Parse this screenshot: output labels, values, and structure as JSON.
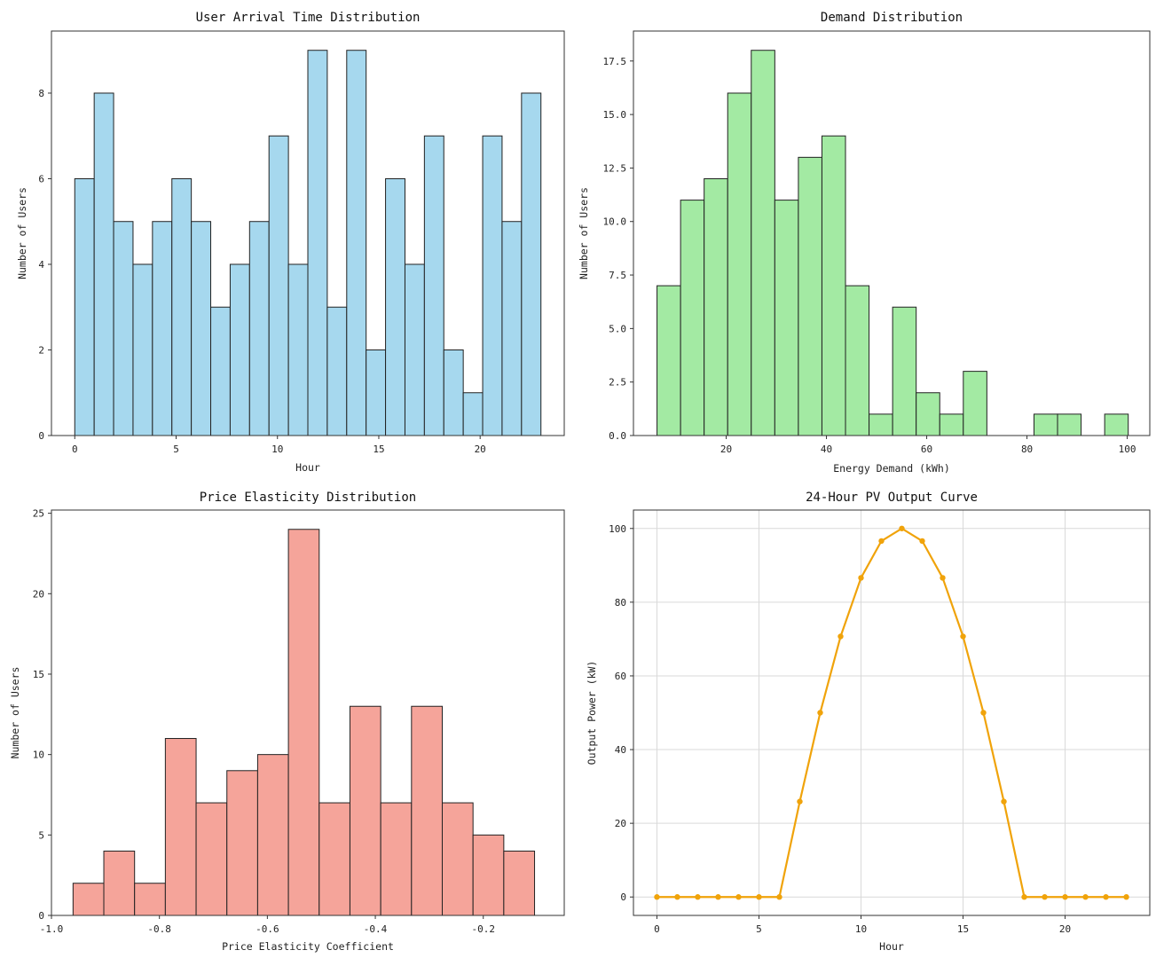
{
  "figure_title": "",
  "chart_data": [
    {
      "id": "arrival",
      "type": "bar",
      "title": "User Arrival Time Distribution",
      "xlabel": "Hour",
      "ylabel": "Number of Users",
      "color": "#a6d8ee",
      "edge_color": "#222222",
      "xlim": [
        -1.15,
        24.15
      ],
      "ylim": [
        0,
        9.45
      ],
      "xticks": [
        0,
        5,
        10,
        15,
        20
      ],
      "yticks": [
        0,
        2,
        4,
        6,
        8
      ],
      "grid": false,
      "bins": [
        {
          "x0": 0.0,
          "x1": 0.958,
          "value": 6
        },
        {
          "x0": 0.958,
          "x1": 1.917,
          "value": 8
        },
        {
          "x0": 1.917,
          "x1": 2.875,
          "value": 5
        },
        {
          "x0": 2.875,
          "x1": 3.833,
          "value": 4
        },
        {
          "x0": 3.833,
          "x1": 4.792,
          "value": 5
        },
        {
          "x0": 4.792,
          "x1": 5.75,
          "value": 6
        },
        {
          "x0": 5.75,
          "x1": 6.708,
          "value": 5
        },
        {
          "x0": 6.708,
          "x1": 7.667,
          "value": 3
        },
        {
          "x0": 7.667,
          "x1": 8.625,
          "value": 4
        },
        {
          "x0": 8.625,
          "x1": 9.583,
          "value": 5
        },
        {
          "x0": 9.583,
          "x1": 10.542,
          "value": 7
        },
        {
          "x0": 10.542,
          "x1": 11.5,
          "value": 4
        },
        {
          "x0": 11.5,
          "x1": 12.458,
          "value": 9
        },
        {
          "x0": 12.458,
          "x1": 13.417,
          "value": 3
        },
        {
          "x0": 13.417,
          "x1": 14.375,
          "value": 9
        },
        {
          "x0": 14.375,
          "x1": 15.333,
          "value": 2
        },
        {
          "x0": 15.333,
          "x1": 16.292,
          "value": 6
        },
        {
          "x0": 16.292,
          "x1": 17.25,
          "value": 4
        },
        {
          "x0": 17.25,
          "x1": 18.208,
          "value": 7
        },
        {
          "x0": 18.208,
          "x1": 19.167,
          "value": 2
        },
        {
          "x0": 19.167,
          "x1": 20.125,
          "value": 1
        },
        {
          "x0": 20.125,
          "x1": 21.083,
          "value": 7
        },
        {
          "x0": 21.083,
          "x1": 22.042,
          "value": 5
        },
        {
          "x0": 22.042,
          "x1": 23.0,
          "value": 8
        }
      ]
    },
    {
      "id": "demand",
      "type": "bar",
      "title": "Demand Distribution",
      "xlabel": "Energy Demand (kWh)",
      "ylabel": "Number of Users",
      "color": "#a3eaa3",
      "edge_color": "#222222",
      "xlim": [
        1.5,
        104.5
      ],
      "ylim": [
        0,
        18.9
      ],
      "xticks": [
        20,
        40,
        60,
        80,
        100
      ],
      "ytick_values": [
        0,
        2.5,
        5,
        7.5,
        10,
        12.5,
        15,
        17.5
      ],
      "ytick_labels": [
        "0.0",
        "2.5",
        "5.0",
        "7.5",
        "10.0",
        "12.5",
        "15.0",
        "17.5"
      ],
      "grid": false,
      "bins": [
        {
          "x0": 6.2,
          "x1": 10.9,
          "value": 7
        },
        {
          "x0": 10.9,
          "x1": 15.6,
          "value": 11
        },
        {
          "x0": 15.6,
          "x1": 20.3,
          "value": 12
        },
        {
          "x0": 20.3,
          "x1": 25.0,
          "value": 16
        },
        {
          "x0": 25.0,
          "x1": 29.7,
          "value": 18
        },
        {
          "x0": 29.7,
          "x1": 34.4,
          "value": 11
        },
        {
          "x0": 34.4,
          "x1": 39.1,
          "value": 13
        },
        {
          "x0": 39.1,
          "x1": 43.8,
          "value": 14
        },
        {
          "x0": 43.8,
          "x1": 48.5,
          "value": 7
        },
        {
          "x0": 48.5,
          "x1": 53.2,
          "value": 1
        },
        {
          "x0": 53.2,
          "x1": 57.9,
          "value": 6
        },
        {
          "x0": 57.9,
          "x1": 62.6,
          "value": 2
        },
        {
          "x0": 62.6,
          "x1": 67.3,
          "value": 1
        },
        {
          "x0": 67.3,
          "x1": 72.0,
          "value": 3
        },
        {
          "x0": 72.0,
          "x1": 76.7,
          "value": 0
        },
        {
          "x0": 76.7,
          "x1": 81.4,
          "value": 0
        },
        {
          "x0": 81.4,
          "x1": 86.1,
          "value": 1
        },
        {
          "x0": 86.1,
          "x1": 90.8,
          "value": 1
        },
        {
          "x0": 90.8,
          "x1": 95.5,
          "value": 0
        },
        {
          "x0": 95.5,
          "x1": 100.2,
          "value": 1
        }
      ]
    },
    {
      "id": "elasticity",
      "type": "bar",
      "title": "Price Elasticity Distribution",
      "xlabel": "Price Elasticity Coefficient",
      "ylabel": "Number of Users",
      "color": "#f5a49a",
      "edge_color": "#222222",
      "xlim": [
        -1.0,
        -0.05
      ],
      "ylim": [
        0,
        25.2
      ],
      "xtick_values": [
        -1.0,
        -0.8,
        -0.6,
        -0.4,
        -0.2
      ],
      "xtick_labels": [
        "-1.0",
        "-0.8",
        "-0.6",
        "-0.4",
        "-0.2"
      ],
      "yticks": [
        0,
        5,
        10,
        15,
        20,
        25
      ],
      "grid": false,
      "bins": [
        {
          "x0": -0.96,
          "x1": -0.903,
          "value": 2
        },
        {
          "x0": -0.903,
          "x1": -0.846,
          "value": 4
        },
        {
          "x0": -0.846,
          "x1": -0.789,
          "value": 2
        },
        {
          "x0": -0.789,
          "x1": -0.732,
          "value": 11
        },
        {
          "x0": -0.732,
          "x1": -0.675,
          "value": 7
        },
        {
          "x0": -0.675,
          "x1": -0.618,
          "value": 9
        },
        {
          "x0": -0.618,
          "x1": -0.561,
          "value": 10
        },
        {
          "x0": -0.561,
          "x1": -0.504,
          "value": 24
        },
        {
          "x0": -0.504,
          "x1": -0.447,
          "value": 7
        },
        {
          "x0": -0.447,
          "x1": -0.39,
          "value": 13
        },
        {
          "x0": -0.39,
          "x1": -0.333,
          "value": 7
        },
        {
          "x0": -0.333,
          "x1": -0.276,
          "value": 13
        },
        {
          "x0": -0.276,
          "x1": -0.219,
          "value": 7
        },
        {
          "x0": -0.219,
          "x1": -0.162,
          "value": 5
        },
        {
          "x0": -0.162,
          "x1": -0.105,
          "value": 4
        }
      ]
    },
    {
      "id": "pv",
      "type": "line",
      "title": "24-Hour PV Output Curve",
      "xlabel": "Hour",
      "ylabel": "Output Power (kW)",
      "color": "#f0a30a",
      "xlim": [
        -1.15,
        24.15
      ],
      "ylim": [
        -5,
        105
      ],
      "xticks": [
        0,
        5,
        10,
        15,
        20
      ],
      "yticks": [
        0,
        20,
        40,
        60,
        80,
        100
      ],
      "grid": true,
      "series": [
        {
          "name": "PV Output",
          "x": [
            0,
            1,
            2,
            3,
            4,
            5,
            6,
            7,
            8,
            9,
            10,
            11,
            12,
            13,
            14,
            15,
            16,
            17,
            18,
            19,
            20,
            21,
            22,
            23
          ],
          "y": [
            0,
            0,
            0,
            0,
            0,
            0,
            0,
            25.9,
            50.0,
            70.7,
            86.6,
            96.6,
            100,
            96.6,
            86.6,
            70.7,
            50.0,
            25.9,
            0,
            0,
            0,
            0,
            0,
            0
          ]
        }
      ]
    }
  ]
}
